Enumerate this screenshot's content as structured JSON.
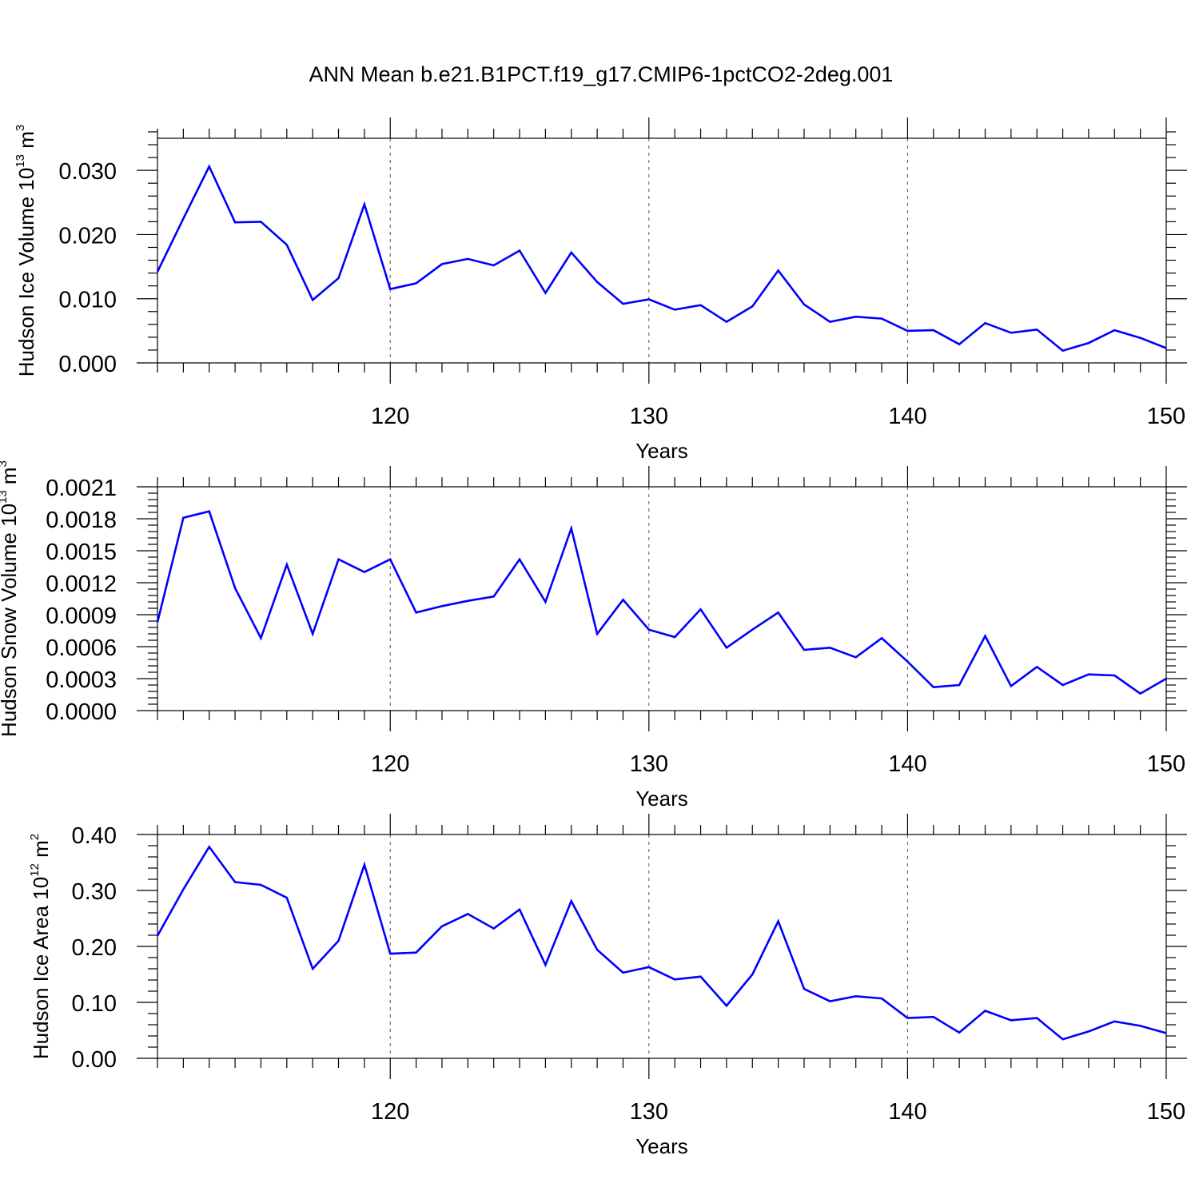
{
  "title": "ANN Mean b.e21.B1PCT.f19_g17.CMIP6-1pctCO2-2deg.001",
  "chart_data": [
    {
      "type": "line",
      "xlabel": "Years",
      "ylabel": "Hudson Ice Volume 10",
      "ylabel_exp": "13",
      "ylabel_unit": " m",
      "ylabel_unit_exp": "3",
      "xlim": [
        111,
        150
      ],
      "ylim": [
        0.0,
        0.035
      ],
      "xticks": [
        120,
        130,
        140,
        150
      ],
      "yticks": [
        0.0,
        0.01,
        0.02,
        0.03
      ],
      "ytick_labels": [
        "0.000",
        "0.010",
        "0.020",
        "0.030"
      ],
      "grid": "vertical dashed at major x ticks",
      "color": "#0000ff",
      "x": [
        111,
        112,
        113,
        114,
        115,
        116,
        117,
        118,
        119,
        120,
        121,
        122,
        123,
        124,
        125,
        126,
        127,
        128,
        129,
        130,
        131,
        132,
        133,
        134,
        135,
        136,
        137,
        138,
        139,
        140,
        141,
        142,
        143,
        144,
        145,
        146,
        147,
        148,
        149,
        150
      ],
      "y": [
        0.0142,
        0.0225,
        0.0306,
        0.0219,
        0.022,
        0.0184,
        0.0098,
        0.0132,
        0.0247,
        0.0115,
        0.0124,
        0.0154,
        0.0162,
        0.0152,
        0.0175,
        0.0109,
        0.0172,
        0.0126,
        0.0092,
        0.0099,
        0.0083,
        0.009,
        0.0064,
        0.0088,
        0.0144,
        0.0091,
        0.0064,
        0.0072,
        0.0069,
        0.005,
        0.0051,
        0.0029,
        0.0062,
        0.0047,
        0.0052,
        0.0019,
        0.0031,
        0.0051,
        0.0039,
        0.0023
      ]
    },
    {
      "type": "line",
      "xlabel": "Years",
      "ylabel": "Hudson Snow Volume 10",
      "ylabel_exp": "13",
      "ylabel_unit": " m",
      "ylabel_unit_exp": "3",
      "xlim": [
        111,
        150
      ],
      "ylim": [
        0.0,
        0.0021
      ],
      "xticks": [
        120,
        130,
        140,
        150
      ],
      "yticks": [
        0.0,
        0.0003,
        0.0006,
        0.0009,
        0.0012,
        0.0015,
        0.0018,
        0.0021
      ],
      "ytick_labels": [
        "0.0000",
        "0.0003",
        "0.0006",
        "0.0009",
        "0.0012",
        "0.0015",
        "0.0018",
        "0.0021"
      ],
      "grid": "vertical dashed at major x ticks",
      "color": "#0000ff",
      "x": [
        111,
        112,
        113,
        114,
        115,
        116,
        117,
        118,
        119,
        120,
        121,
        122,
        123,
        124,
        125,
        126,
        127,
        128,
        129,
        130,
        131,
        132,
        133,
        134,
        135,
        136,
        137,
        138,
        139,
        140,
        141,
        142,
        143,
        144,
        145,
        146,
        147,
        148,
        149,
        150
      ],
      "y": [
        0.00083,
        0.00181,
        0.00187,
        0.00115,
        0.00068,
        0.00137,
        0.00072,
        0.00142,
        0.0013,
        0.00142,
        0.00092,
        0.00098,
        0.00103,
        0.00107,
        0.00142,
        0.00102,
        0.00171,
        0.00072,
        0.00104,
        0.00076,
        0.00069,
        0.00095,
        0.00059,
        0.00076,
        0.00092,
        0.00057,
        0.00059,
        0.0005,
        0.00068,
        0.00046,
        0.00022,
        0.00024,
        0.0007,
        0.00023,
        0.00041,
        0.00024,
        0.00034,
        0.00033,
        0.00016,
        0.0003
      ]
    },
    {
      "type": "line",
      "xlabel": "Years",
      "ylabel": "Hudson Ice Area 10",
      "ylabel_exp": "12",
      "ylabel_unit": " m",
      "ylabel_unit_exp": "2",
      "xlim": [
        111,
        150
      ],
      "ylim": [
        0.0,
        0.4
      ],
      "xticks": [
        120,
        130,
        140,
        150
      ],
      "yticks": [
        0.0,
        0.1,
        0.2,
        0.3,
        0.4
      ],
      "ytick_labels": [
        "0.00",
        "0.10",
        "0.20",
        "0.30",
        "0.40"
      ],
      "grid": "vertical dashed at major x ticks",
      "color": "#0000ff",
      "x": [
        111,
        112,
        113,
        114,
        115,
        116,
        117,
        118,
        119,
        120,
        121,
        122,
        123,
        124,
        125,
        126,
        127,
        128,
        129,
        130,
        131,
        132,
        133,
        134,
        135,
        136,
        137,
        138,
        139,
        140,
        141,
        142,
        143,
        144,
        145,
        146,
        147,
        148,
        149,
        150
      ],
      "y": [
        0.219,
        0.302,
        0.378,
        0.315,
        0.31,
        0.287,
        0.16,
        0.21,
        0.346,
        0.187,
        0.189,
        0.236,
        0.258,
        0.232,
        0.266,
        0.167,
        0.281,
        0.194,
        0.153,
        0.163,
        0.141,
        0.146,
        0.094,
        0.15,
        0.245,
        0.124,
        0.102,
        0.111,
        0.107,
        0.072,
        0.074,
        0.046,
        0.085,
        0.068,
        0.072,
        0.034,
        0.048,
        0.066,
        0.058,
        0.045
      ]
    }
  ]
}
